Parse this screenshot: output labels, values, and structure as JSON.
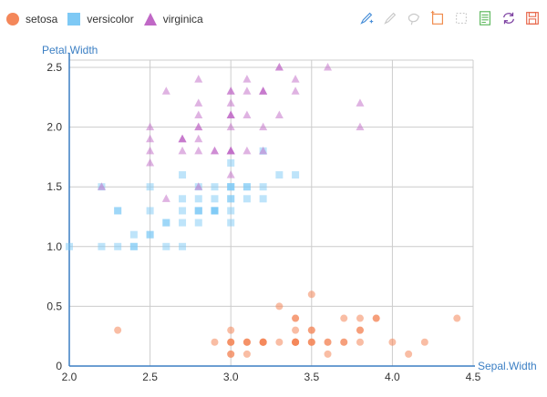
{
  "legend": {
    "items": [
      {
        "name": "setosa",
        "shape": "circle",
        "color": "#f4875a"
      },
      {
        "name": "versicolor",
        "shape": "square",
        "color": "#7ec9f5"
      },
      {
        "name": "virginica",
        "shape": "triangle",
        "color": "#c068c6"
      }
    ]
  },
  "toolbox": {
    "icons": [
      "brush-icon",
      "brush-clear-icon",
      "lasso-icon",
      "rect-select-icon",
      "clear-select-icon",
      "data-view-icon",
      "restore-icon",
      "save-image-icon"
    ]
  },
  "chart_data": {
    "type": "scatter",
    "xlabel": "Sepal.Width",
    "ylabel": "Petal.Width",
    "xlim": [
      2.0,
      4.5
    ],
    "ylim": [
      0,
      2.5
    ],
    "xticks": [
      "2.0",
      "2.5",
      "3.0",
      "3.5",
      "4.0",
      "4.5"
    ],
    "yticks": [
      "0",
      "0.5",
      "1.0",
      "1.5",
      "2.0",
      "2.5"
    ],
    "grid": true,
    "legend_position": "top-left",
    "series": [
      {
        "name": "setosa",
        "marker": "circle",
        "color": "#f4875a",
        "points": [
          [
            3.5,
            0.2
          ],
          [
            3.0,
            0.2
          ],
          [
            3.2,
            0.2
          ],
          [
            3.1,
            0.2
          ],
          [
            3.6,
            0.2
          ],
          [
            3.9,
            0.4
          ],
          [
            3.4,
            0.3
          ],
          [
            3.4,
            0.2
          ],
          [
            2.9,
            0.2
          ],
          [
            3.1,
            0.1
          ],
          [
            3.7,
            0.2
          ],
          [
            3.4,
            0.2
          ],
          [
            3.0,
            0.1
          ],
          [
            3.0,
            0.1
          ],
          [
            4.0,
            0.2
          ],
          [
            4.4,
            0.4
          ],
          [
            3.9,
            0.4
          ],
          [
            3.5,
            0.3
          ],
          [
            3.8,
            0.3
          ],
          [
            3.8,
            0.3
          ],
          [
            3.4,
            0.2
          ],
          [
            3.7,
            0.4
          ],
          [
            3.6,
            0.2
          ],
          [
            3.3,
            0.5
          ],
          [
            3.4,
            0.2
          ],
          [
            3.0,
            0.2
          ],
          [
            3.4,
            0.4
          ],
          [
            3.5,
            0.2
          ],
          [
            3.4,
            0.2
          ],
          [
            3.2,
            0.2
          ],
          [
            3.1,
            0.2
          ],
          [
            3.4,
            0.4
          ],
          [
            4.1,
            0.1
          ],
          [
            4.2,
            0.2
          ],
          [
            3.1,
            0.2
          ],
          [
            3.2,
            0.2
          ],
          [
            3.5,
            0.2
          ],
          [
            3.6,
            0.1
          ],
          [
            3.0,
            0.2
          ],
          [
            3.4,
            0.2
          ],
          [
            3.5,
            0.3
          ],
          [
            2.3,
            0.3
          ],
          [
            3.2,
            0.2
          ],
          [
            3.5,
            0.6
          ],
          [
            3.8,
            0.4
          ],
          [
            3.0,
            0.3
          ],
          [
            3.8,
            0.2
          ],
          [
            3.2,
            0.2
          ],
          [
            3.7,
            0.2
          ],
          [
            3.3,
            0.2
          ]
        ]
      },
      {
        "name": "versicolor",
        "marker": "square",
        "color": "#7ec9f5",
        "points": [
          [
            3.2,
            1.4
          ],
          [
            3.2,
            1.5
          ],
          [
            3.1,
            1.5
          ],
          [
            2.3,
            1.3
          ],
          [
            2.8,
            1.5
          ],
          [
            2.8,
            1.3
          ],
          [
            3.3,
            1.6
          ],
          [
            2.4,
            1.0
          ],
          [
            2.9,
            1.3
          ],
          [
            2.7,
            1.4
          ],
          [
            2.0,
            1.0
          ],
          [
            3.0,
            1.5
          ],
          [
            2.2,
            1.0
          ],
          [
            2.9,
            1.4
          ],
          [
            2.9,
            1.3
          ],
          [
            3.1,
            1.4
          ],
          [
            3.0,
            1.5
          ],
          [
            2.7,
            1.0
          ],
          [
            2.2,
            1.5
          ],
          [
            2.5,
            1.1
          ],
          [
            3.2,
            1.8
          ],
          [
            2.8,
            1.3
          ],
          [
            2.5,
            1.5
          ],
          [
            2.8,
            1.2
          ],
          [
            2.9,
            1.3
          ],
          [
            3.0,
            1.4
          ],
          [
            2.8,
            1.4
          ],
          [
            3.0,
            1.7
          ],
          [
            2.9,
            1.5
          ],
          [
            2.6,
            1.0
          ],
          [
            2.4,
            1.1
          ],
          [
            2.4,
            1.0
          ],
          [
            2.7,
            1.2
          ],
          [
            2.7,
            1.6
          ],
          [
            3.0,
            1.5
          ],
          [
            3.4,
            1.6
          ],
          [
            3.1,
            1.5
          ],
          [
            2.3,
            1.3
          ],
          [
            3.0,
            1.3
          ],
          [
            2.5,
            1.3
          ],
          [
            2.6,
            1.2
          ],
          [
            3.0,
            1.4
          ],
          [
            2.6,
            1.2
          ],
          [
            2.3,
            1.0
          ],
          [
            2.7,
            1.3
          ],
          [
            3.0,
            1.2
          ],
          [
            2.9,
            1.3
          ],
          [
            2.9,
            1.3
          ],
          [
            2.5,
            1.1
          ],
          [
            2.8,
            1.3
          ]
        ]
      },
      {
        "name": "virginica",
        "marker": "triangle",
        "color": "#c068c6",
        "points": [
          [
            3.3,
            2.5
          ],
          [
            2.7,
            1.9
          ],
          [
            3.0,
            2.1
          ],
          [
            2.9,
            1.8
          ],
          [
            3.0,
            2.2
          ],
          [
            3.0,
            2.1
          ],
          [
            2.5,
            1.7
          ],
          [
            2.9,
            1.8
          ],
          [
            2.5,
            1.8
          ],
          [
            3.6,
            2.5
          ],
          [
            3.2,
            2.0
          ],
          [
            2.7,
            1.9
          ],
          [
            3.0,
            2.1
          ],
          [
            2.5,
            2.0
          ],
          [
            2.8,
            2.4
          ],
          [
            3.2,
            2.3
          ],
          [
            3.0,
            1.8
          ],
          [
            3.8,
            2.2
          ],
          [
            2.6,
            2.3
          ],
          [
            2.2,
            1.5
          ],
          [
            3.2,
            2.3
          ],
          [
            2.8,
            2.0
          ],
          [
            2.8,
            2.0
          ],
          [
            2.7,
            1.8
          ],
          [
            3.3,
            2.1
          ],
          [
            3.2,
            1.8
          ],
          [
            2.8,
            1.8
          ],
          [
            3.0,
            1.8
          ],
          [
            2.8,
            2.1
          ],
          [
            3.0,
            1.6
          ],
          [
            2.8,
            1.9
          ],
          [
            3.8,
            2.0
          ],
          [
            2.8,
            2.2
          ],
          [
            2.8,
            1.5
          ],
          [
            2.6,
            1.4
          ],
          [
            3.0,
            2.3
          ],
          [
            3.4,
            2.4
          ],
          [
            3.1,
            1.8
          ],
          [
            3.0,
            1.8
          ],
          [
            3.1,
            2.1
          ],
          [
            3.1,
            2.4
          ],
          [
            3.1,
            2.3
          ],
          [
            2.7,
            1.9
          ],
          [
            3.2,
            2.3
          ],
          [
            3.3,
            2.5
          ],
          [
            3.0,
            2.3
          ],
          [
            2.5,
            1.9
          ],
          [
            3.0,
            2.0
          ],
          [
            3.4,
            2.3
          ],
          [
            3.0,
            1.8
          ]
        ]
      }
    ]
  }
}
